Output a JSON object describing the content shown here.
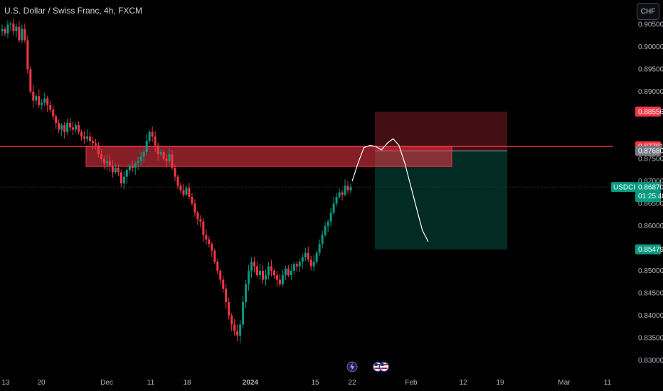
{
  "header": {
    "title": "U.S. Dollar / Swiss Franc, 4h, FXCM",
    "currency_button": "CHF"
  },
  "price_axis": {
    "ticks": [
      "0.90500",
      "0.90000",
      "0.89500",
      "0.89000",
      "0.87500",
      "0.87000",
      "0.86500",
      "0.86000",
      "0.85000",
      "0.84500",
      "0.84000",
      "0.83500",
      "0.83000"
    ],
    "labels": [
      {
        "value": "0.88556",
        "color": "#f23645"
      },
      {
        "value": "0.87781",
        "color": "#f23645"
      },
      {
        "value": "0.87680",
        "color": "#787b86"
      },
      {
        "value": "0.85479",
        "color": "#089981"
      }
    ],
    "current": {
      "symbol": "USDCHF",
      "price": "0.86870",
      "countdown": "01:25:48",
      "color": "#089981"
    }
  },
  "time_axis": {
    "ticks": [
      "13",
      "20",
      "Dec",
      "11",
      "18",
      "2024",
      "15",
      "22",
      "Feb",
      "12",
      "19",
      "Mar",
      "11"
    ]
  },
  "colors": {
    "up": "#089981",
    "down": "#f23645",
    "zone_fill": "rgba(242,54,69,0.55)",
    "stop_fill": "rgba(242,54,69,0.28)",
    "target_fill": "rgba(8,153,129,0.28)",
    "resistance_line": "#f23645",
    "projection": "#ffffff"
  },
  "icons": [
    "lightning-icon",
    "us-flag-icon",
    "us-flag-icon"
  ],
  "chart_data": {
    "type": "candlestick",
    "symbol": "USDCHF",
    "interval": "4h",
    "ylim": [
      0.827,
      0.9115
    ],
    "resistance_level": 0.87781,
    "supply_zone": [
      0.8733,
      0.8778
    ],
    "position": {
      "entry": 0.8768,
      "stop": 0.88556,
      "target": 0.85479
    },
    "last_price": 0.8687,
    "price_path": [
      [
        0.904,
        0.903,
        0.905,
        0.9052,
        0.9035,
        0.9045,
        0.9015,
        0.904
      ],
      [
        0.9015,
        0.895,
        0.89,
        0.888,
        0.889,
        0.887,
        0.8875,
        0.8885,
        0.887,
        0.886,
        0.8845,
        0.883,
        0.8815,
        0.8825,
        0.881,
        0.883,
        0.882,
        0.8815,
        0.8825,
        0.881,
        0.88,
        0.8795,
        0.88,
        0.879,
        0.8785,
        0.878,
        0.876,
        0.875,
        0.874,
        0.8745,
        0.8735,
        0.872,
        0.873,
        0.872,
        0.8695,
        0.871,
        0.8725,
        0.8735,
        0.873,
        0.874,
        0.8745,
        0.8755,
        0.8765,
        0.879,
        0.881,
        0.88,
        0.878,
        0.876,
        0.8765,
        0.875,
        0.8745,
        0.876,
        0.873,
        0.871,
        0.869,
        0.868,
        0.867,
        0.8685,
        0.8665,
        0.865,
        0.863,
        0.8615,
        0.861,
        0.858,
        0.857,
        0.856,
        0.8545,
        0.852,
        0.85,
        0.848,
        0.846,
        0.843,
        0.84,
        0.838,
        0.8365,
        0.8355,
        0.838,
        0.843,
        0.847,
        0.85,
        0.852,
        0.851,
        0.849,
        0.85,
        0.848,
        0.849,
        0.851,
        0.85,
        0.849,
        0.848,
        0.847,
        0.849,
        0.8505,
        0.849,
        0.85,
        0.8515,
        0.851,
        0.852,
        0.853,
        0.854,
        0.8525,
        0.851,
        0.852,
        0.854,
        0.856,
        0.858,
        0.86,
        0.861,
        0.863,
        0.865,
        0.8665,
        0.8675,
        0.867,
        0.869,
        0.868,
        0.8687
      ]
    ],
    "projection_path": [
      0.87,
      0.874,
      0.8775,
      0.878,
      0.8778,
      0.877,
      0.8785,
      0.8795,
      0.878,
      0.874,
      0.869,
      0.864,
      0.859,
      0.8565
    ]
  }
}
